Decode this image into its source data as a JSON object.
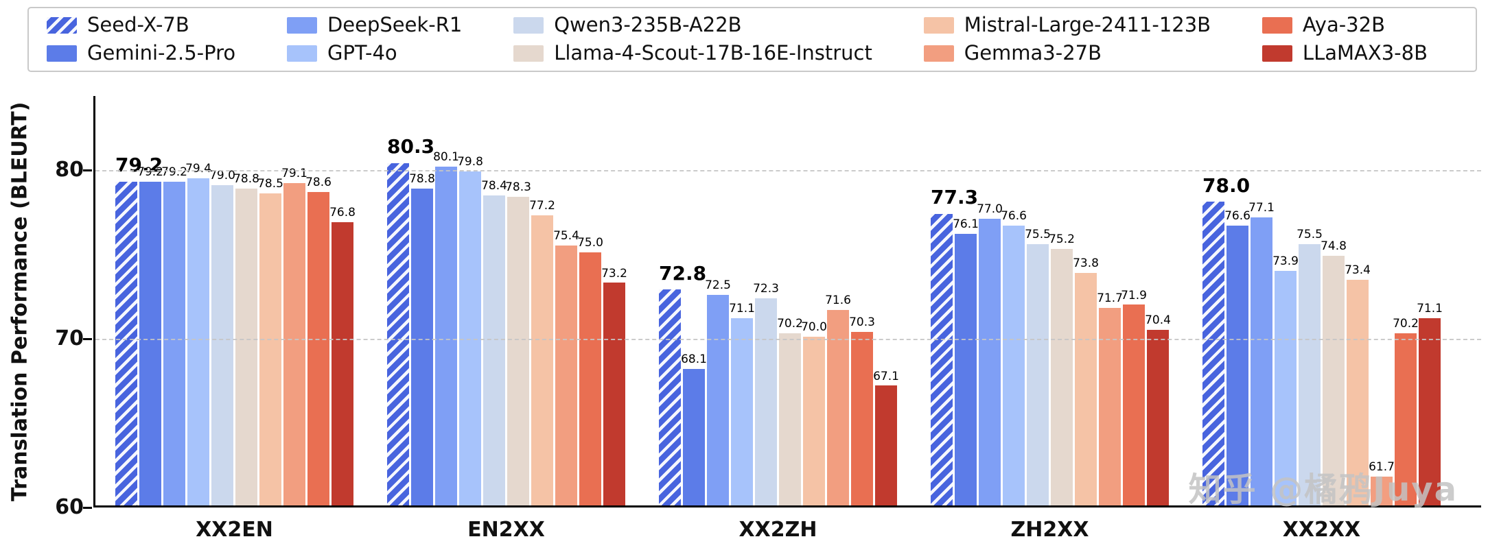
{
  "watermark": "知乎 @橘鸦Juya",
  "chart_data": {
    "type": "bar",
    "title": "",
    "xlabel": "",
    "ylabel": "Translation Performance (BLEURT)",
    "ylim": [
      60,
      84.4
    ],
    "yticks": [
      60,
      70,
      80
    ],
    "gridlines": [
      70,
      80
    ],
    "grid_style": "horizontal dashed",
    "legend_position": "top",
    "categories": [
      "XX2EN",
      "EN2XX",
      "XX2ZH",
      "ZH2XX",
      "XX2XX"
    ],
    "series": [
      {
        "name": "Seed-X-7B",
        "color": "#4864DE",
        "hatch": true,
        "highlight_labels": true,
        "values": [
          79.2,
          80.3,
          72.8,
          77.3,
          78.0
        ]
      },
      {
        "name": "Gemini-2.5-Pro",
        "color": "#5C7CE8",
        "hatch": false,
        "highlight_labels": false,
        "values": [
          79.2,
          78.8,
          68.1,
          76.1,
          76.6
        ]
      },
      {
        "name": "DeepSeek-R1",
        "color": "#7F9FF5",
        "hatch": false,
        "highlight_labels": false,
        "values": [
          79.2,
          80.1,
          72.5,
          77.0,
          77.1
        ]
      },
      {
        "name": "GPT-4o",
        "color": "#A7C3FB",
        "hatch": false,
        "highlight_labels": false,
        "values": [
          79.4,
          79.8,
          71.1,
          76.6,
          73.9
        ]
      },
      {
        "name": "Qwen3-235B-A22B",
        "color": "#CBD8ED",
        "hatch": false,
        "highlight_labels": false,
        "values": [
          79.0,
          78.4,
          72.3,
          75.5,
          75.5
        ]
      },
      {
        "name": "Llama-4-Scout-17B-16E-Instruct",
        "color": "#E5D8CE",
        "hatch": false,
        "highlight_labels": false,
        "values": [
          78.8,
          78.3,
          70.2,
          75.2,
          74.8
        ]
      },
      {
        "name": "Mistral-Large-2411-123B",
        "color": "#F5C3A6",
        "hatch": false,
        "highlight_labels": false,
        "values": [
          78.5,
          77.2,
          70.0,
          73.8,
          73.4
        ]
      },
      {
        "name": "Gemma3-27B",
        "color": "#F29E80",
        "hatch": false,
        "highlight_labels": false,
        "values": [
          79.1,
          75.4,
          71.6,
          71.7,
          61.7
        ]
      },
      {
        "name": "Aya-32B",
        "color": "#E96F52",
        "hatch": false,
        "highlight_labels": false,
        "values": [
          78.6,
          75.0,
          70.3,
          71.9,
          70.2
        ]
      },
      {
        "name": "LLaMAX3-8B",
        "color": "#C13A2E",
        "hatch": false,
        "highlight_labels": false,
        "values": [
          76.8,
          73.2,
          67.1,
          70.4,
          71.1
        ]
      }
    ]
  }
}
